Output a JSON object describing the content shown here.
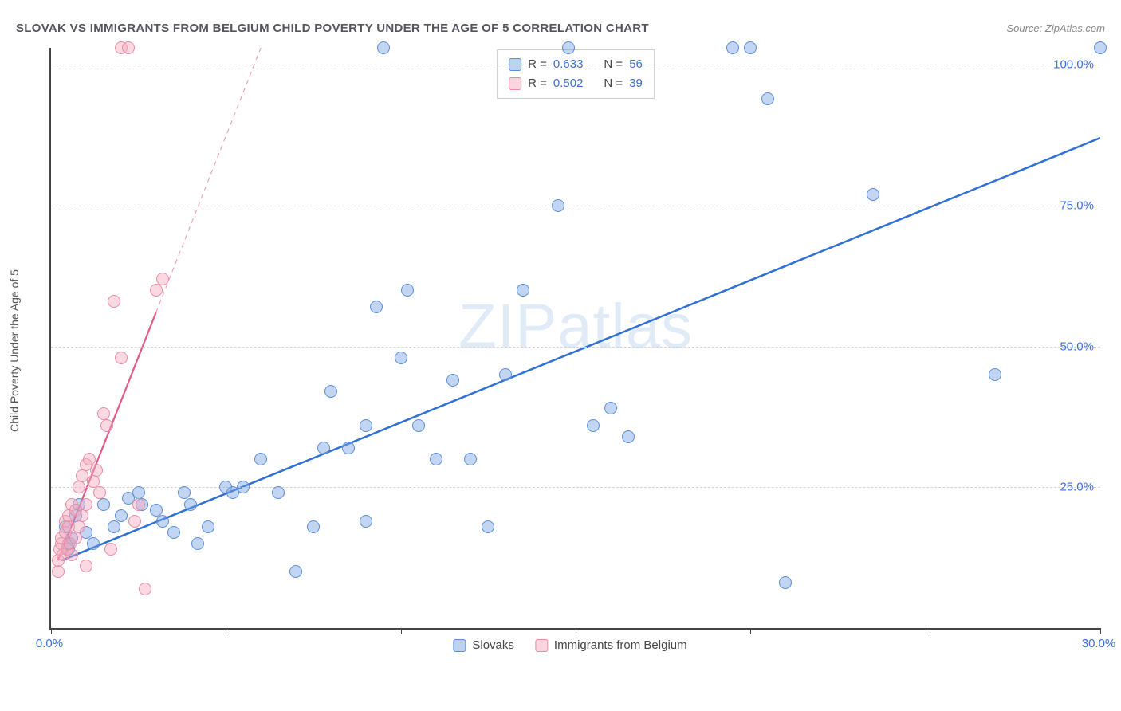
{
  "title": "SLOVAK VS IMMIGRANTS FROM BELGIUM CHILD POVERTY UNDER THE AGE OF 5 CORRELATION CHART",
  "source_label": "Source: ",
  "source_name": "ZipAtlas.com",
  "ylabel": "Child Poverty Under the Age of 5",
  "watermark": "ZIPatlas",
  "chart": {
    "type": "scatter",
    "xlim": [
      0,
      30
    ],
    "ylim": [
      0,
      103
    ],
    "xticks": [
      0,
      5,
      10,
      15,
      20,
      25,
      30
    ],
    "xtick_labels": {
      "0": "0.0%",
      "30": "30.0%"
    },
    "yticks": [
      25,
      50,
      75,
      100
    ],
    "ytick_labels": [
      "25.0%",
      "50.0%",
      "75.0%",
      "100.0%"
    ],
    "background_color": "#ffffff",
    "grid_color": "#d5d5d5",
    "axis_color": "#444444",
    "label_fontsize": 14,
    "tick_fontsize": 15,
    "tick_color": "#3a6fd8",
    "marker_size": 16,
    "series": [
      {
        "name": "Slovaks",
        "color_fill": "rgba(120,165,230,0.45)",
        "color_stroke": "#5b8dd6",
        "r": 0.633,
        "n": 56,
        "trend": {
          "x1": 0.3,
          "y1": 12,
          "x2": 30,
          "y2": 87,
          "color": "#2f6fd6",
          "width": 2.5,
          "dash": "none"
        },
        "points": [
          [
            0.4,
            18
          ],
          [
            0.5,
            14
          ],
          [
            0.5,
            15
          ],
          [
            0.6,
            16
          ],
          [
            0.7,
            20
          ],
          [
            0.8,
            22
          ],
          [
            1.0,
            17
          ],
          [
            1.2,
            15
          ],
          [
            1.5,
            22
          ],
          [
            1.8,
            18
          ],
          [
            2.0,
            20
          ],
          [
            2.2,
            23
          ],
          [
            2.5,
            24
          ],
          [
            2.6,
            22
          ],
          [
            3.0,
            21
          ],
          [
            3.2,
            19
          ],
          [
            3.5,
            17
          ],
          [
            3.8,
            24
          ],
          [
            4.0,
            22
          ],
          [
            4.2,
            15
          ],
          [
            4.5,
            18
          ],
          [
            5.0,
            25
          ],
          [
            5.2,
            24
          ],
          [
            5.5,
            25
          ],
          [
            6.0,
            30
          ],
          [
            6.5,
            24
          ],
          [
            7.0,
            10
          ],
          [
            7.5,
            18
          ],
          [
            7.8,
            32
          ],
          [
            8.0,
            42
          ],
          [
            8.5,
            32
          ],
          [
            9.0,
            36
          ],
          [
            9.0,
            19
          ],
          [
            9.3,
            57
          ],
          [
            9.5,
            103
          ],
          [
            10.0,
            48
          ],
          [
            10.2,
            60
          ],
          [
            10.5,
            36
          ],
          [
            11.0,
            30
          ],
          [
            11.5,
            44
          ],
          [
            12.0,
            30
          ],
          [
            12.5,
            18
          ],
          [
            13.0,
            45
          ],
          [
            13.5,
            60
          ],
          [
            14.5,
            75
          ],
          [
            14.8,
            103
          ],
          [
            15.5,
            36
          ],
          [
            16.0,
            39
          ],
          [
            16.5,
            34
          ],
          [
            19.5,
            103
          ],
          [
            20.0,
            103
          ],
          [
            20.5,
            94
          ],
          [
            21.0,
            8
          ],
          [
            23.5,
            77
          ],
          [
            27.0,
            45
          ],
          [
            30.0,
            103
          ]
        ]
      },
      {
        "name": "Immigrants from Belgium",
        "color_fill": "rgba(245,170,190,0.45)",
        "color_stroke": "#e88ba5",
        "r": 0.502,
        "n": 39,
        "trend": {
          "x1": 0.2,
          "y1": 12,
          "x2": 3.0,
          "y2": 56,
          "color": "#e15a8a",
          "width": 2.2,
          "dash": "none"
        },
        "trend_ext": {
          "x1": 3.0,
          "y1": 56,
          "x2": 6.0,
          "y2": 103,
          "color": "#e8a5b8",
          "width": 1.2,
          "dash": "6,5"
        },
        "points": [
          [
            0.2,
            10
          ],
          [
            0.2,
            12
          ],
          [
            0.25,
            14
          ],
          [
            0.3,
            15
          ],
          [
            0.3,
            16
          ],
          [
            0.35,
            13
          ],
          [
            0.4,
            17
          ],
          [
            0.4,
            19
          ],
          [
            0.45,
            14
          ],
          [
            0.5,
            18
          ],
          [
            0.5,
            20
          ],
          [
            0.55,
            15
          ],
          [
            0.6,
            22
          ],
          [
            0.6,
            13
          ],
          [
            0.7,
            21
          ],
          [
            0.7,
            16
          ],
          [
            0.8,
            25
          ],
          [
            0.8,
            18
          ],
          [
            0.9,
            27
          ],
          [
            0.9,
            20
          ],
          [
            1.0,
            29
          ],
          [
            1.0,
            22
          ],
          [
            1.1,
            30
          ],
          [
            1.2,
            26
          ],
          [
            1.3,
            28
          ],
          [
            1.4,
            24
          ],
          [
            1.5,
            38
          ],
          [
            1.6,
            36
          ],
          [
            1.7,
            14
          ],
          [
            1.8,
            58
          ],
          [
            2.0,
            48
          ],
          [
            2.0,
            103
          ],
          [
            2.2,
            103
          ],
          [
            2.4,
            19
          ],
          [
            2.5,
            22
          ],
          [
            2.7,
            7
          ],
          [
            3.0,
            60
          ],
          [
            3.2,
            62
          ],
          [
            1.0,
            11
          ]
        ]
      }
    ]
  },
  "legend_top": {
    "r_label": "R =",
    "n_label": "N ="
  },
  "legend_bottom": {
    "series1": "Slovaks",
    "series2": "Immigrants from Belgium"
  }
}
